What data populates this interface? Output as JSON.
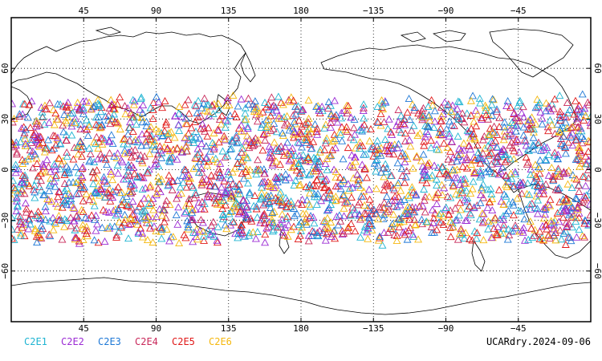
{
  "map": {
    "projection": "equirectangular",
    "center_longitude": 180,
    "lon_range": [
      0,
      360
    ],
    "lat_range": [
      -90,
      90
    ],
    "gridlines": "dotted",
    "lon_tick_labels": [
      "45",
      "90",
      "135",
      "180",
      "−135",
      "−90",
      "−45"
    ],
    "lat_tick_labels": [
      "60",
      "30",
      "0",
      "−30",
      "−60"
    ],
    "land_outline_color": "#000000",
    "ocean_color": "#ffffff"
  },
  "legend": [
    {
      "label": "C2E1",
      "color": "#1fb4d2"
    },
    {
      "label": "C2E2",
      "color": "#9b2bd4"
    },
    {
      "label": "C2E3",
      "color": "#1e78d6"
    },
    {
      "label": "C2E4",
      "color": "#c8285a"
    },
    {
      "label": "C2E5",
      "color": "#e01818"
    },
    {
      "label": "C2E6",
      "color": "#f5b80f"
    }
  ],
  "markers": {
    "symbol": "open-triangle",
    "latitude_band": [
      -45,
      45
    ]
  },
  "footer": {
    "product_label": "UCARdry.2024-09-06"
  }
}
